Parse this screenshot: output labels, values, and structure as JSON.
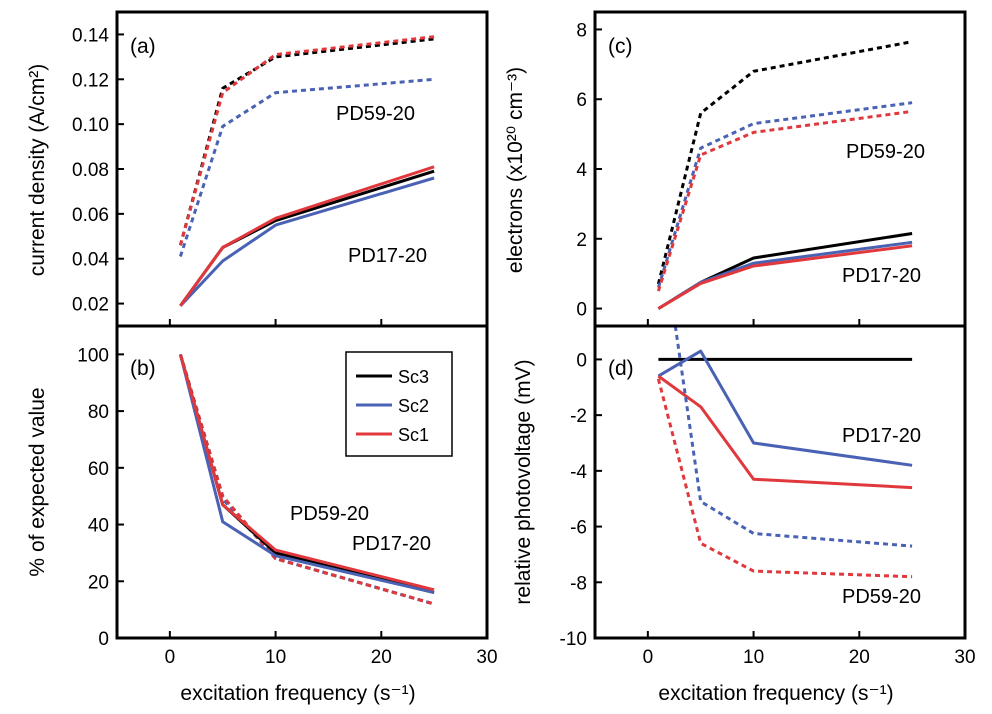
{
  "colors": {
    "Sc3": "#000000",
    "Sc2": "#4a62b4",
    "Sc1": "#e0383c"
  },
  "x_axis_label": "excitation frequency (s⁻¹)",
  "legend": [
    "Sc3",
    "Sc2",
    "Sc1"
  ],
  "chart_data": [
    {
      "panel": "(a)",
      "type": "line",
      "ylabel": "current density (A/cm²)",
      "xlim": [
        -5,
        30
      ],
      "ylim": [
        0.01,
        0.15
      ],
      "xticks": [
        0,
        10,
        20,
        30
      ],
      "yticks": [
        0.02,
        0.04,
        0.06,
        0.08,
        0.1,
        0.12,
        0.14
      ],
      "ytick_labels": [
        "0.02",
        "0.04",
        "0.06",
        "0.08",
        "0.10",
        "0.12",
        "0.14"
      ],
      "annotations": [
        "PD59-20",
        "PD17-20"
      ],
      "x": [
        1,
        5,
        10,
        25
      ],
      "series": [
        {
          "name": "Sc3",
          "group": "PD59-20",
          "dashed": true,
          "values": [
            0.046,
            0.116,
            0.13,
            0.138
          ]
        },
        {
          "name": "Sc2",
          "group": "PD59-20",
          "dashed": true,
          "values": [
            0.041,
            0.099,
            0.114,
            0.12
          ]
        },
        {
          "name": "Sc1",
          "group": "PD59-20",
          "dashed": true,
          "values": [
            0.046,
            0.114,
            0.131,
            0.139
          ]
        },
        {
          "name": "Sc3",
          "group": "PD17-20",
          "dashed": false,
          "values": [
            0.019,
            0.045,
            0.057,
            0.079
          ]
        },
        {
          "name": "Sc2",
          "group": "PD17-20",
          "dashed": false,
          "values": [
            0.019,
            0.039,
            0.055,
            0.076
          ]
        },
        {
          "name": "Sc1",
          "group": "PD17-20",
          "dashed": false,
          "values": [
            0.019,
            0.045,
            0.058,
            0.081
          ]
        }
      ]
    },
    {
      "panel": "(b)",
      "type": "line",
      "ylabel": "% of expected value",
      "xlim": [
        -5,
        30
      ],
      "ylim": [
        0,
        110
      ],
      "xticks": [
        0,
        10,
        20,
        30
      ],
      "yticks": [
        0,
        20,
        40,
        60,
        80,
        100
      ],
      "ytick_labels": [
        "0",
        "20",
        "40",
        "60",
        "80",
        "100"
      ],
      "annotations": [
        "PD59-20",
        "PD17-20"
      ],
      "x": [
        1,
        5,
        10,
        25
      ],
      "series": [
        {
          "name": "Sc3",
          "group": "PD59-20",
          "dashed": true,
          "values": [
            100,
            50,
            28,
            12
          ]
        },
        {
          "name": "Sc2",
          "group": "PD59-20",
          "dashed": true,
          "values": [
            100,
            49,
            28,
            12
          ]
        },
        {
          "name": "Sc1",
          "group": "PD59-20",
          "dashed": true,
          "values": [
            100,
            50,
            28,
            12
          ]
        },
        {
          "name": "Sc3",
          "group": "PD17-20",
          "dashed": false,
          "values": [
            100,
            47,
            30,
            16
          ]
        },
        {
          "name": "Sc2",
          "group": "PD17-20",
          "dashed": false,
          "values": [
            100,
            41,
            29,
            16
          ]
        },
        {
          "name": "Sc1",
          "group": "PD17-20",
          "dashed": false,
          "values": [
            100,
            47,
            31,
            17
          ]
        }
      ]
    },
    {
      "panel": "(c)",
      "type": "line",
      "ylabel": "electrons (x10²⁰ cm⁻³)",
      "xlim": [
        -5,
        30
      ],
      "ylim": [
        -0.5,
        8.5
      ],
      "xticks": [
        0,
        10,
        20,
        30
      ],
      "yticks": [
        0,
        2,
        4,
        6,
        8
      ],
      "ytick_labels": [
        "0",
        "2",
        "4",
        "6",
        "8"
      ],
      "annotations": [
        "PD59-20",
        "PD17-20"
      ],
      "x": [
        1,
        5,
        10,
        25
      ],
      "series": [
        {
          "name": "Sc3",
          "group": "PD59-20",
          "dashed": true,
          "values": [
            0.7,
            5.6,
            6.8,
            7.65
          ]
        },
        {
          "name": "Sc2",
          "group": "PD59-20",
          "dashed": true,
          "values": [
            0.6,
            4.6,
            5.3,
            5.9
          ]
        },
        {
          "name": "Sc1",
          "group": "PD59-20",
          "dashed": true,
          "values": [
            0.5,
            4.4,
            5.05,
            5.65
          ]
        },
        {
          "name": "Sc3",
          "group": "PD17-20",
          "dashed": false,
          "values": [
            0.0,
            0.75,
            1.45,
            2.15
          ]
        },
        {
          "name": "Sc2",
          "group": "PD17-20",
          "dashed": false,
          "values": [
            0.0,
            0.75,
            1.3,
            1.9
          ]
        },
        {
          "name": "Sc1",
          "group": "PD17-20",
          "dashed": false,
          "values": [
            0.0,
            0.72,
            1.22,
            1.8
          ]
        }
      ]
    },
    {
      "panel": "(d)",
      "type": "line",
      "ylabel": "relative photovoltage (mV)",
      "xlim": [
        -5,
        30
      ],
      "ylim": [
        -10,
        1.2
      ],
      "xticks": [
        0,
        10,
        20,
        30
      ],
      "yticks": [
        -10,
        -8,
        -6,
        -4,
        -2,
        0
      ],
      "ytick_labels": [
        "-10",
        "-8",
        "-6",
        "-4",
        "-2",
        "0"
      ],
      "annotations": [
        "PD17-20",
        "PD59-20"
      ],
      "x": [
        1,
        5,
        10,
        25
      ],
      "series": [
        {
          "name": "Sc3",
          "group": "PD17-20",
          "dashed": false,
          "values": [
            0,
            0,
            0,
            0
          ]
        },
        {
          "name": "Sc2",
          "group": "PD17-20",
          "dashed": false,
          "values": [
            -0.6,
            0.3,
            -3.0,
            -3.8
          ]
        },
        {
          "name": "Sc1",
          "group": "PD17-20",
          "dashed": false,
          "values": [
            -0.6,
            -1.7,
            -4.3,
            -4.6
          ]
        },
        {
          "name": "Sc2",
          "group": "PD59-20",
          "dashed": true,
          "x": [
            2.6,
            5,
            10,
            25
          ],
          "values": [
            1.2,
            -5.1,
            -6.25,
            -6.7
          ]
        },
        {
          "name": "Sc1",
          "group": "PD59-20",
          "dashed": true,
          "x": [
            1,
            5,
            10,
            25
          ],
          "values": [
            -0.7,
            -6.6,
            -7.6,
            -7.8
          ]
        }
      ]
    }
  ]
}
